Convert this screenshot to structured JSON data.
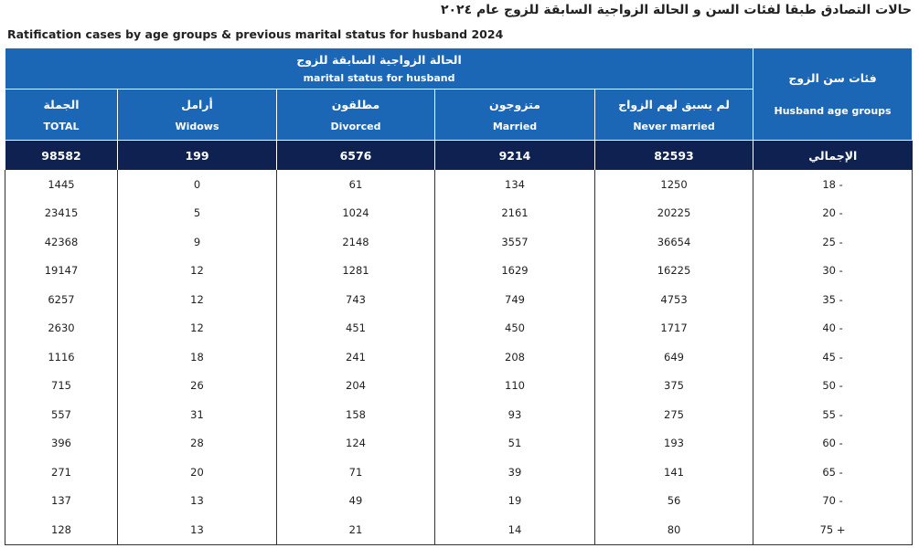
{
  "title_ar": "حالات التصادق طبقا لفئات السن و الحالة الزواجية السابقة للزوج  عام ٢٠٢٤",
  "title_en": "Ratification cases by age groups & previous marital status for husband 2024",
  "table": {
    "group_header": {
      "ar": "الحالة الزواجية السابقة للزوج",
      "en": "marital status for husband"
    },
    "age_header": {
      "ar": "فئات سن الزوج",
      "en": "Husband age groups"
    },
    "columns": [
      {
        "ar": "الجملة",
        "en": "TOTAL"
      },
      {
        "ar": "أرامل",
        "en": "Widows"
      },
      {
        "ar": "مطلقون",
        "en": "Divorced"
      },
      {
        "ar": "متزوجون",
        "en": "Married"
      },
      {
        "ar": "لم يسبق لهم الزواج",
        "en": "Never married"
      }
    ],
    "total_row": {
      "label": "الإجمالي",
      "values": [
        98582,
        199,
        6576,
        9214,
        82593
      ]
    },
    "rows": [
      {
        "age": "18 -",
        "values": [
          1445,
          0,
          61,
          134,
          1250
        ]
      },
      {
        "age": "20 -",
        "values": [
          23415,
          5,
          1024,
          2161,
          20225
        ]
      },
      {
        "age": "25 -",
        "values": [
          42368,
          9,
          2148,
          3557,
          36654
        ]
      },
      {
        "age": "30 -",
        "values": [
          19147,
          12,
          1281,
          1629,
          16225
        ]
      },
      {
        "age": "35 -",
        "values": [
          6257,
          12,
          743,
          749,
          4753
        ]
      },
      {
        "age": "40 -",
        "values": [
          2630,
          12,
          451,
          450,
          1717
        ]
      },
      {
        "age": "45 -",
        "values": [
          1116,
          18,
          241,
          208,
          649
        ]
      },
      {
        "age": "50 -",
        "values": [
          715,
          26,
          204,
          110,
          375
        ]
      },
      {
        "age": "55 -",
        "values": [
          557,
          31,
          158,
          93,
          275
        ]
      },
      {
        "age": "60 -",
        "values": [
          396,
          28,
          124,
          51,
          193
        ]
      },
      {
        "age": "65 -",
        "values": [
          271,
          20,
          71,
          39,
          141
        ]
      },
      {
        "age": "70 -",
        "values": [
          137,
          13,
          49,
          19,
          56
        ]
      },
      {
        "age": "75 +",
        "values": [
          128,
          13,
          21,
          14,
          80
        ]
      }
    ]
  }
}
